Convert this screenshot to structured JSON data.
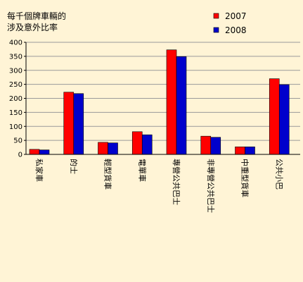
{
  "chart_data": {
    "type": "bar",
    "title_lines": [
      "每千個牌車輛的",
      "涉及意外比率"
    ],
    "categories": [
      "私家車",
      "的士",
      "輕型貨車",
      "電單車",
      "專營公共巴士",
      "非專營公共巴士",
      "中重型貨車",
      "公共小巴"
    ],
    "series": [
      {
        "name": "2007",
        "color": "#ff0000",
        "values": [
          18,
          222,
          43,
          81,
          373,
          65,
          27,
          270
        ]
      },
      {
        "name": "2008",
        "color": "#0000cc",
        "values": [
          16,
          217,
          41,
          70,
          349,
          61,
          27,
          249
        ]
      }
    ],
    "ylim": [
      0,
      400
    ],
    "yticks": [
      0,
      50,
      100,
      150,
      200,
      250,
      300,
      350,
      400
    ],
    "grid": true,
    "legend_position": "top-right",
    "background_color": "#fff4d6",
    "grid_color": "#9a9a9a"
  }
}
